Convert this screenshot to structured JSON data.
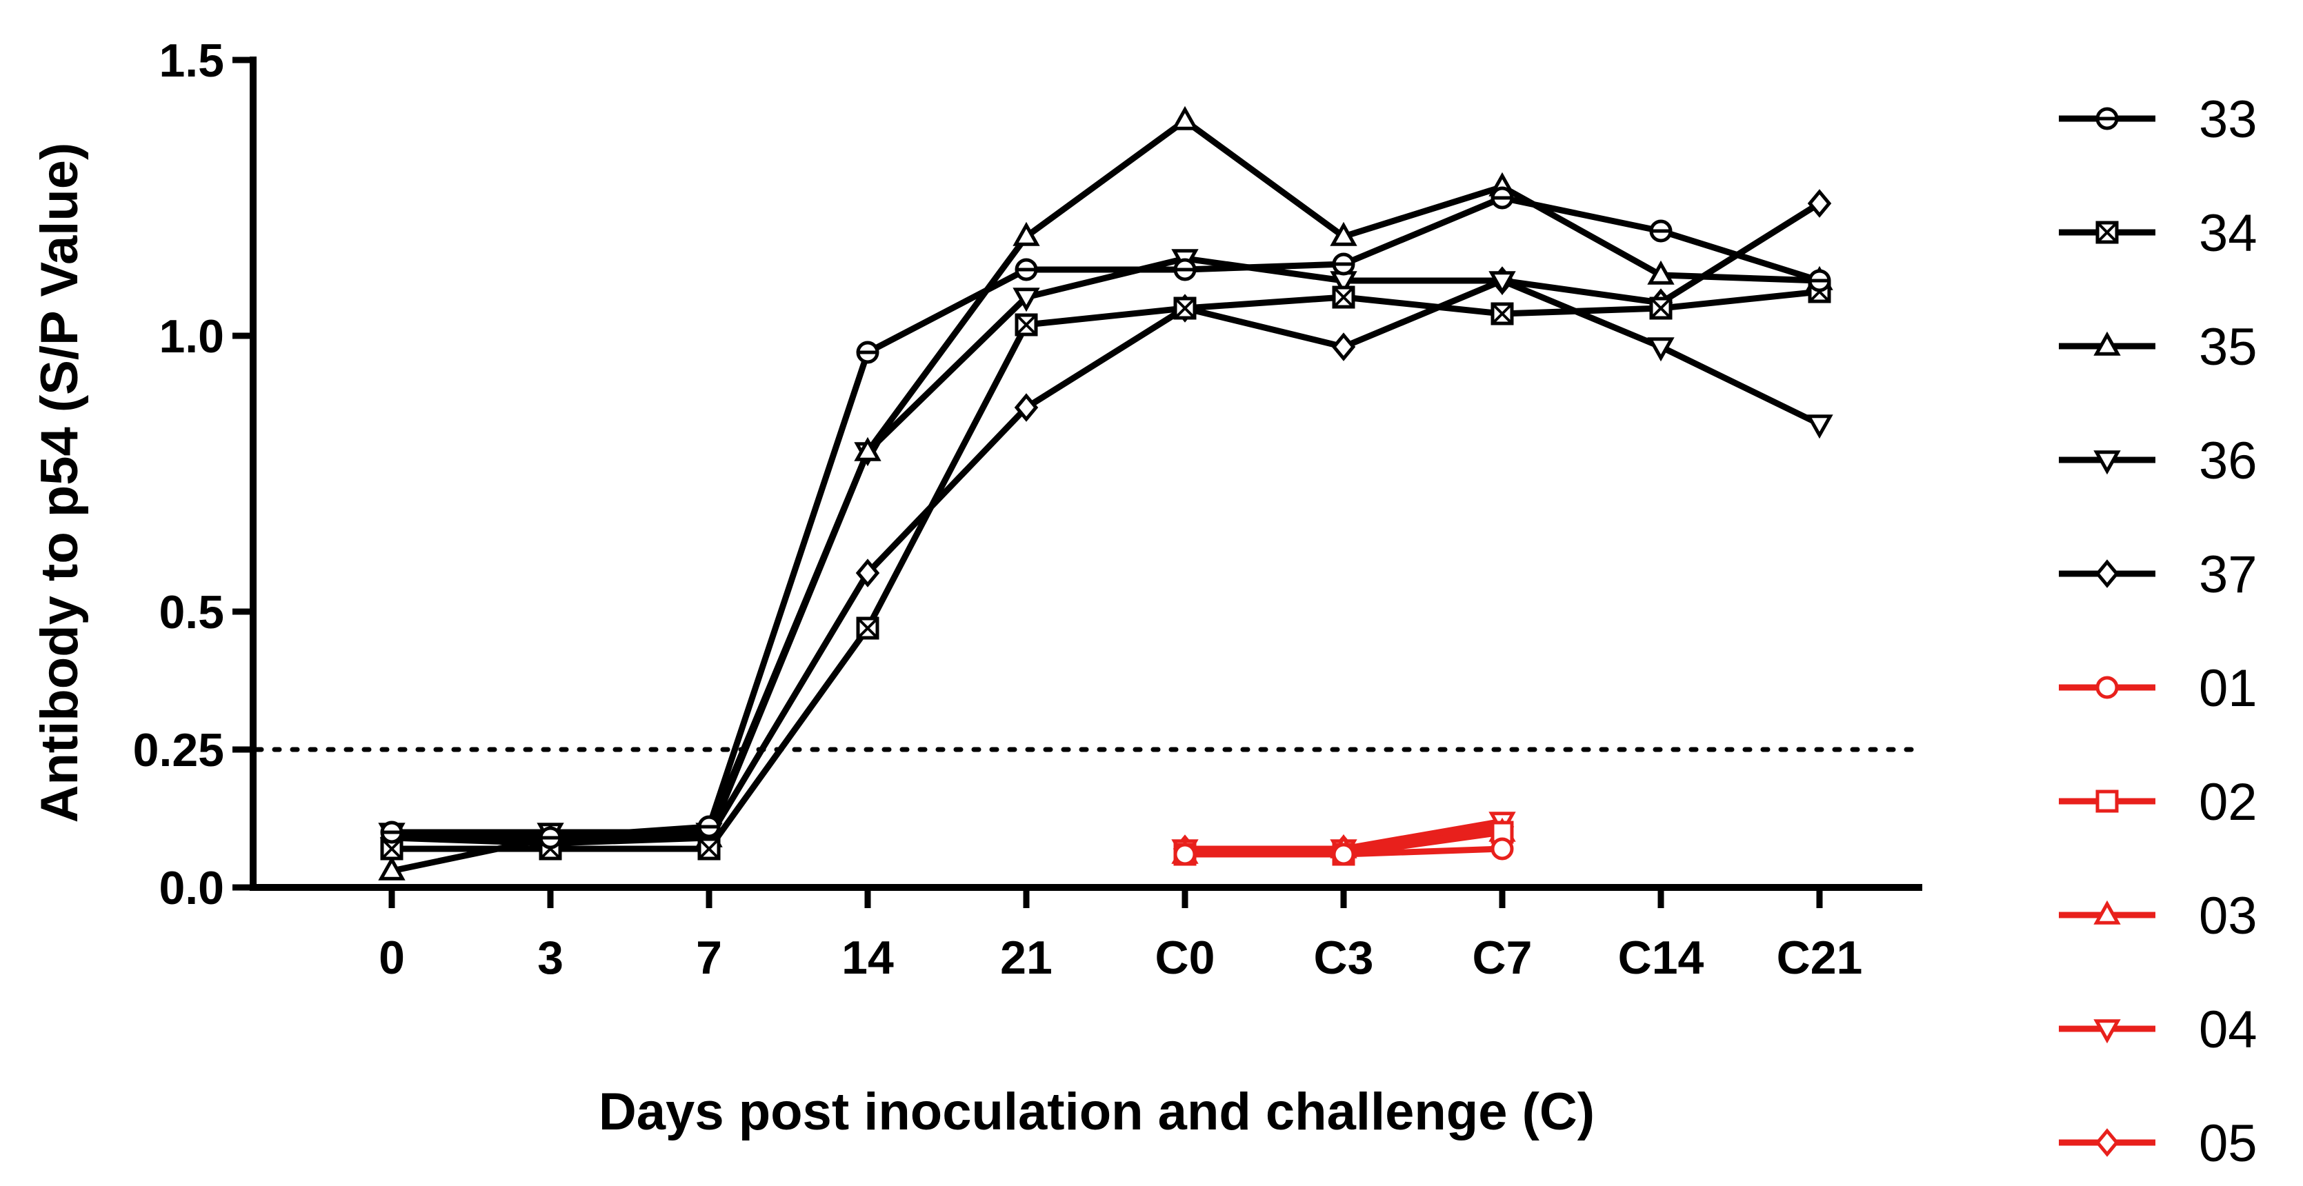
{
  "chart_data": {
    "type": "line",
    "title": "",
    "xlabel": "Days post inoculation and challenge (C)",
    "ylabel": "Antibody to p54 (S/P Value)",
    "categories": [
      "0",
      "3",
      "7",
      "14",
      "21",
      "C0",
      "C3",
      "C7",
      "C14",
      "C21"
    ],
    "ylim": [
      0,
      1.5
    ],
    "yticks": [
      0.0,
      0.25,
      0.5,
      1.0,
      1.5
    ],
    "ytick_labels": [
      "0.0",
      "0.25",
      "0.5",
      "1.0",
      "1.5"
    ],
    "cutoff": 0.25,
    "legend_position": "right",
    "series": [
      {
        "name": "33",
        "color": "#000000",
        "marker": "circle-dot",
        "values": [
          0.1,
          0.09,
          0.11,
          0.97,
          1.12,
          1.12,
          1.13,
          1.25,
          1.19,
          1.1
        ]
      },
      {
        "name": "34",
        "color": "#000000",
        "marker": "square-x",
        "values": [
          0.07,
          0.07,
          0.07,
          0.47,
          1.02,
          1.05,
          1.07,
          1.04,
          1.05,
          1.08
        ]
      },
      {
        "name": "35",
        "color": "#000000",
        "marker": "triangle-up",
        "values": [
          0.03,
          0.09,
          0.09,
          0.79,
          1.18,
          1.39,
          1.18,
          1.27,
          1.11,
          1.1
        ]
      },
      {
        "name": "36",
        "color": "#000000",
        "marker": "triangle-down",
        "values": [
          0.1,
          0.1,
          0.1,
          0.79,
          1.07,
          1.14,
          1.1,
          1.1,
          0.98,
          0.84
        ]
      },
      {
        "name": "37",
        "color": "#000000",
        "marker": "diamond",
        "values": [
          0.09,
          0.08,
          0.09,
          0.57,
          0.87,
          1.05,
          0.98,
          1.1,
          1.06,
          1.24
        ]
      },
      {
        "name": "01",
        "color": "#e8201c",
        "marker": "circle",
        "values": [
          null,
          null,
          null,
          null,
          null,
          0.06,
          0.06,
          0.07,
          null,
          null
        ]
      },
      {
        "name": "02",
        "color": "#e8201c",
        "marker": "square",
        "values": [
          null,
          null,
          null,
          null,
          null,
          0.06,
          0.06,
          0.1,
          null,
          null
        ]
      },
      {
        "name": "03",
        "color": "#e8201c",
        "marker": "triangle-up",
        "values": [
          null,
          null,
          null,
          null,
          null,
          0.06,
          0.07,
          0.1,
          null,
          null
        ]
      },
      {
        "name": "04",
        "color": "#e8201c",
        "marker": "triangle-down",
        "values": [
          null,
          null,
          null,
          null,
          null,
          0.07,
          0.07,
          0.12,
          null,
          null
        ]
      },
      {
        "name": "05",
        "color": "#e8201c",
        "marker": "diamond",
        "values": [
          null,
          null,
          null,
          null,
          null,
          0.07,
          0.07,
          0.11,
          null,
          null
        ]
      }
    ]
  }
}
